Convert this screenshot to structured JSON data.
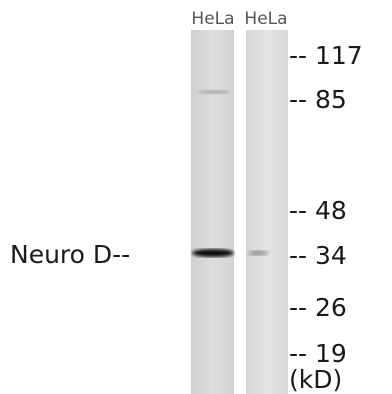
{
  "lanes": [
    "HeLa",
    "HeLa"
  ],
  "band_label": "Neuro D--",
  "markers": [
    "-- 117",
    "-- 85",
    "-- 48",
    "-- 34",
    "-- 26",
    "-- 19"
  ],
  "unit": "(kD)"
}
